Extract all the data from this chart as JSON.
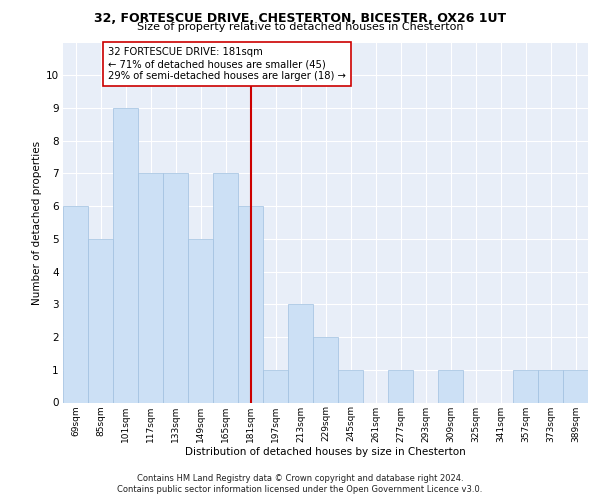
{
  "title": "32, FORTESCUE DRIVE, CHESTERTON, BICESTER, OX26 1UT",
  "subtitle": "Size of property relative to detached houses in Chesterton",
  "xlabel": "Distribution of detached houses by size in Chesterton",
  "ylabel": "Number of detached properties",
  "bar_labels": [
    "69sqm",
    "85sqm",
    "101sqm",
    "117sqm",
    "133sqm",
    "149sqm",
    "165sqm",
    "181sqm",
    "197sqm",
    "213sqm",
    "229sqm",
    "245sqm",
    "261sqm",
    "277sqm",
    "293sqm",
    "309sqm",
    "325sqm",
    "341sqm",
    "357sqm",
    "373sqm",
    "389sqm"
  ],
  "bar_values": [
    6,
    5,
    9,
    7,
    7,
    5,
    7,
    6,
    1,
    3,
    2,
    1,
    0,
    1,
    0,
    1,
    0,
    0,
    1,
    1,
    1
  ],
  "bar_color": "#cce0f5",
  "bar_edge_color": "#a0c0e0",
  "vline_x": 7,
  "vline_color": "#cc0000",
  "annotation_text": "32 FORTESCUE DRIVE: 181sqm\n← 71% of detached houses are smaller (45)\n29% of semi-detached houses are larger (18) →",
  "annotation_box_color": "#ffffff",
  "annotation_box_edge": "#cc0000",
  "ylim": [
    0,
    11
  ],
  "yticks": [
    0,
    1,
    2,
    3,
    4,
    5,
    6,
    7,
    8,
    9,
    10,
    11
  ],
  "bg_color": "#e8eef8",
  "grid_color": "#ffffff",
  "footer": "Contains HM Land Registry data © Crown copyright and database right 2024.\nContains public sector information licensed under the Open Government Licence v3.0."
}
